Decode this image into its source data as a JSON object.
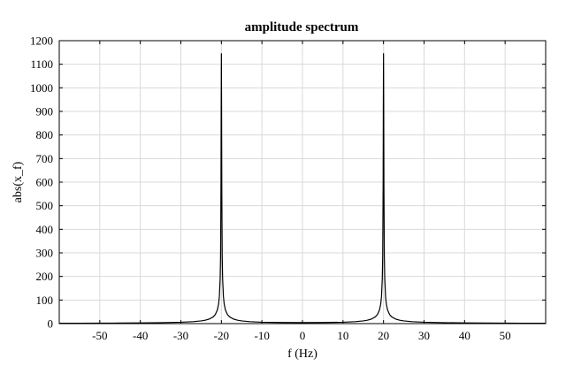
{
  "chart_data": {
    "type": "line",
    "title": "amplitude spectrum",
    "xlabel": "f (Hz)",
    "ylabel": "abs(x_f)",
    "xlim": [
      -60,
      60
    ],
    "ylim": [
      0,
      1200
    ],
    "xticks": [
      -50,
      -40,
      -30,
      -20,
      -10,
      0,
      10,
      20,
      30,
      40,
      50
    ],
    "yticks": [
      0,
      100,
      200,
      300,
      400,
      500,
      600,
      700,
      800,
      900,
      1000,
      1100,
      1200
    ],
    "grid": true,
    "series": [
      {
        "color": "#000000",
        "points": [
          [
            -60,
            1.3
          ],
          [
            -55,
            1.6
          ],
          [
            -50,
            1.9
          ],
          [
            -45,
            2.3
          ],
          [
            -40,
            2.9
          ],
          [
            -35,
            3.9
          ],
          [
            -30,
            5.8
          ],
          [
            -27,
            8.2
          ],
          [
            -25,
            11.5
          ],
          [
            -24,
            14.4
          ],
          [
            -23,
            19.2
          ],
          [
            -22,
            28.8
          ],
          [
            -21.5,
            38.4
          ],
          [
            -21,
            57.5
          ],
          [
            -20.7,
            82
          ],
          [
            -20.5,
            115
          ],
          [
            -20.3,
            192
          ],
          [
            -20.2,
            288
          ],
          [
            -20.1,
            575
          ],
          [
            -20.05,
            900
          ],
          [
            -20,
            1145
          ],
          [
            -19.95,
            900
          ],
          [
            -19.9,
            575
          ],
          [
            -19.8,
            288
          ],
          [
            -19.7,
            192
          ],
          [
            -19.5,
            115
          ],
          [
            -19.3,
            82
          ],
          [
            -19,
            57.5
          ],
          [
            -18.5,
            38.4
          ],
          [
            -18,
            28.8
          ],
          [
            -17,
            19.2
          ],
          [
            -16,
            14.4
          ],
          [
            -15,
            11.5
          ],
          [
            -13,
            8.2
          ],
          [
            -10,
            5.8
          ],
          [
            -5,
            4.6
          ],
          [
            0,
            4.1
          ],
          [
            5,
            4.6
          ],
          [
            10,
            5.8
          ],
          [
            13,
            8.2
          ],
          [
            15,
            11.5
          ],
          [
            16,
            14.4
          ],
          [
            17,
            19.2
          ],
          [
            18,
            28.8
          ],
          [
            18.5,
            38.4
          ],
          [
            19,
            57.5
          ],
          [
            19.3,
            82
          ],
          [
            19.5,
            115
          ],
          [
            19.7,
            192
          ],
          [
            19.8,
            288
          ],
          [
            19.9,
            575
          ],
          [
            19.95,
            900
          ],
          [
            20,
            1145
          ],
          [
            20.05,
            900
          ],
          [
            20.1,
            575
          ],
          [
            20.2,
            288
          ],
          [
            20.3,
            192
          ],
          [
            20.5,
            115
          ],
          [
            20.7,
            82
          ],
          [
            21,
            57.5
          ],
          [
            21.5,
            38.4
          ],
          [
            22,
            28.8
          ],
          [
            23,
            19.2
          ],
          [
            24,
            14.4
          ],
          [
            25,
            11.5
          ],
          [
            27,
            8.2
          ],
          [
            30,
            5.8
          ],
          [
            35,
            3.9
          ],
          [
            40,
            2.9
          ],
          [
            45,
            2.3
          ],
          [
            50,
            1.9
          ],
          [
            55,
            1.6
          ],
          [
            60,
            1.3
          ]
        ]
      }
    ]
  }
}
